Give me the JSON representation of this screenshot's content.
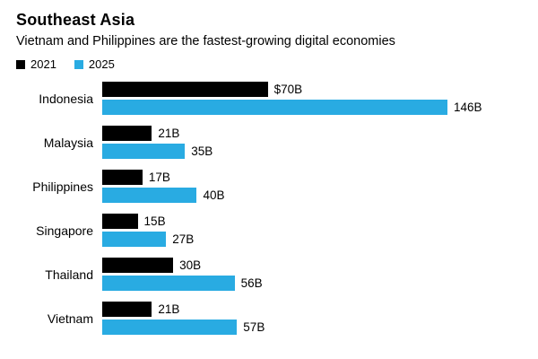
{
  "header": {
    "title": "Southeast Asia",
    "subtitle": "Vietnam and Philippines are the fastest-growing digital economies"
  },
  "chart_data": {
    "type": "bar",
    "orientation": "horizontal",
    "title": "Southeast Asia",
    "subtitle": "Vietnam and Philippines are the fastest-growing digital economies",
    "xlabel": "",
    "ylabel": "",
    "grid": false,
    "legend_position": "top",
    "xlim": [
      0,
      146
    ],
    "categories": [
      "Indonesia",
      "Malaysia",
      "Philippines",
      "Singapore",
      "Thailand",
      "Vietnam"
    ],
    "series": [
      {
        "name": "2021",
        "color": "#000000",
        "values": [
          70,
          21,
          17,
          15,
          30,
          21
        ],
        "labels": [
          "$70B",
          "21B",
          "17B",
          "15B",
          "30B",
          "21B"
        ]
      },
      {
        "name": "2025",
        "color": "#29ABE2",
        "values": [
          146,
          35,
          40,
          27,
          56,
          57
        ],
        "labels": [
          "146B",
          "35B",
          "40B",
          "27B",
          "56B",
          "57B"
        ]
      }
    ]
  }
}
